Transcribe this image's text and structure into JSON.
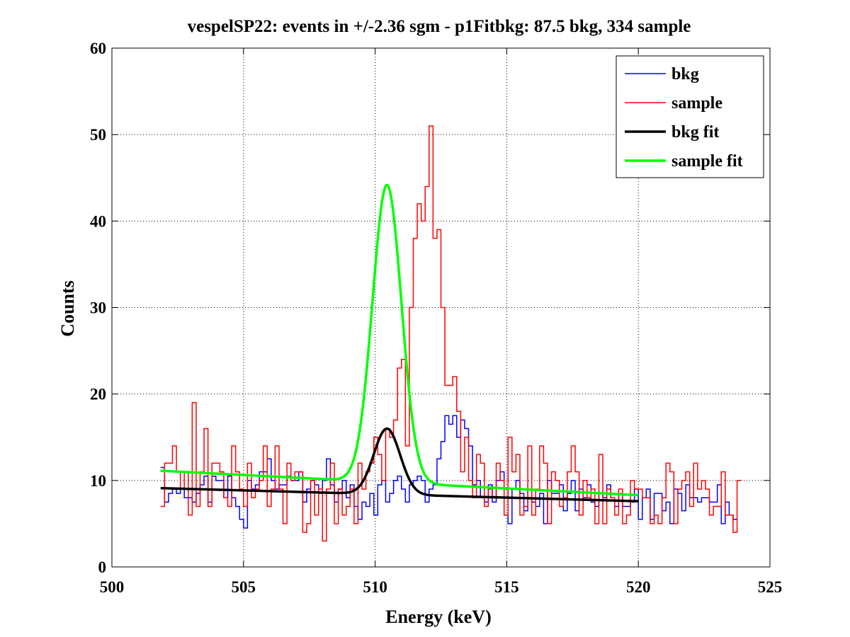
{
  "chart_data": {
    "type": "line",
    "title": "vespelSP22: events in +/-2.36 sgm - p1Fitbkg: 87.5 bkg, 334 sample",
    "xlabel": "Energy (keV)",
    "ylabel": "Counts",
    "xlim": [
      500,
      525
    ],
    "ylim": [
      0,
      60
    ],
    "xticks": [
      500,
      505,
      510,
      515,
      520,
      525
    ],
    "yticks": [
      0,
      10,
      20,
      30,
      40,
      50,
      60
    ],
    "grid": true,
    "legend_position": "top-right",
    "bin_start": 501.85,
    "bin_width": 0.15,
    "series": [
      {
        "name": "bkg",
        "style": "stairs",
        "color": "#0000ff",
        "values": [
          11.5,
          7.5,
          8.5,
          9,
          8.5,
          9,
          8,
          8,
          7.5,
          8.5,
          9.5,
          10.5,
          7.5,
          10.5,
          10,
          10,
          8,
          10.5,
          8,
          7,
          5.5,
          4.5,
          10,
          9,
          9.5,
          11,
          11,
          12.5,
          10,
          9,
          9.5,
          9.5,
          10.5,
          10,
          10,
          11,
          7.5,
          9,
          10,
          9.5,
          8.5,
          10,
          12.5,
          9.5,
          7.5,
          9,
          10,
          8,
          9.5,
          7,
          5.5,
          7.5,
          7,
          8.5,
          6,
          9.5,
          10,
          7.5,
          8.5,
          10,
          10.5,
          9,
          7.5,
          9.5,
          10,
          10.5,
          10,
          7.5,
          9,
          9.5,
          12.5,
          14.5,
          17.5,
          16.5,
          17.5,
          15,
          17,
          16,
          14,
          9.5,
          10,
          8,
          7.5,
          9.5,
          7.5,
          10,
          11,
          9,
          5,
          9,
          10,
          8.5,
          6.5,
          9,
          7.5,
          7,
          8.5,
          5,
          10,
          8.5,
          8.5,
          9.5,
          6.5,
          8.5,
          10,
          6.5,
          9,
          8,
          9.5,
          7.5,
          7,
          8.5,
          8,
          9.5,
          8,
          7,
          8.5,
          7,
          7,
          7.5,
          9,
          5.5,
          8,
          9,
          5.5,
          8.5,
          8.5,
          6.5,
          7.5,
          5,
          9,
          8.5,
          6.5,
          9.5,
          8,
          8,
          7.5,
          8,
          8,
          7.5,
          7.5,
          9.5,
          5,
          7.5,
          6,
          5.5
        ]
      },
      {
        "name": "sample",
        "style": "stairs",
        "color": "#ff0000",
        "values": [
          7,
          12,
          12,
          14,
          11,
          9,
          11,
          6,
          19,
          7,
          11,
          16,
          7,
          12,
          12,
          11,
          8,
          7,
          14,
          11,
          9,
          7,
          12,
          8,
          9,
          10,
          14,
          7,
          9,
          14,
          9,
          5,
          12,
          10,
          11,
          11,
          4,
          5,
          10,
          6,
          9,
          3,
          9,
          12,
          5,
          9,
          6,
          7,
          9,
          5,
          12,
          9,
          11,
          12,
          15,
          13,
          10,
          16,
          15,
          17,
          23,
          24,
          14,
          30,
          38,
          42,
          40,
          44,
          51,
          38,
          39,
          30,
          21,
          21,
          22,
          18,
          11,
          15,
          10,
          8,
          13,
          12,
          7,
          9,
          8,
          12,
          10,
          6,
          15,
          11,
          13,
          6,
          7,
          14,
          6,
          9,
          14,
          12,
          5,
          11,
          10,
          7,
          8,
          11,
          14,
          11,
          6,
          10,
          8,
          9,
          5,
          13,
          5,
          9,
          8,
          6,
          9,
          5,
          6,
          10,
          9,
          9,
          8,
          8,
          5,
          6,
          5,
          8,
          12,
          11,
          5,
          9,
          10,
          11,
          7,
          12,
          9,
          10,
          9,
          6,
          7,
          7,
          11,
          6,
          6,
          4,
          10
        ]
      },
      {
        "name": "bkg fit",
        "style": "line",
        "color": "#000000",
        "model": {
          "base_at_502": 9.1,
          "base_at_520": 7.6,
          "peak_center": 510.45,
          "peak_height": 7.6,
          "peak_sigma": 0.5
        }
      },
      {
        "name": "sample fit",
        "style": "line",
        "color": "#00ff00",
        "model": {
          "base_at_502": 11.1,
          "base_at_520": 8.3,
          "peak_center": 510.45,
          "peak_height": 34.4,
          "peak_sigma": 0.55
        }
      }
    ],
    "x_range_data": [
      501.85,
      520
    ]
  }
}
